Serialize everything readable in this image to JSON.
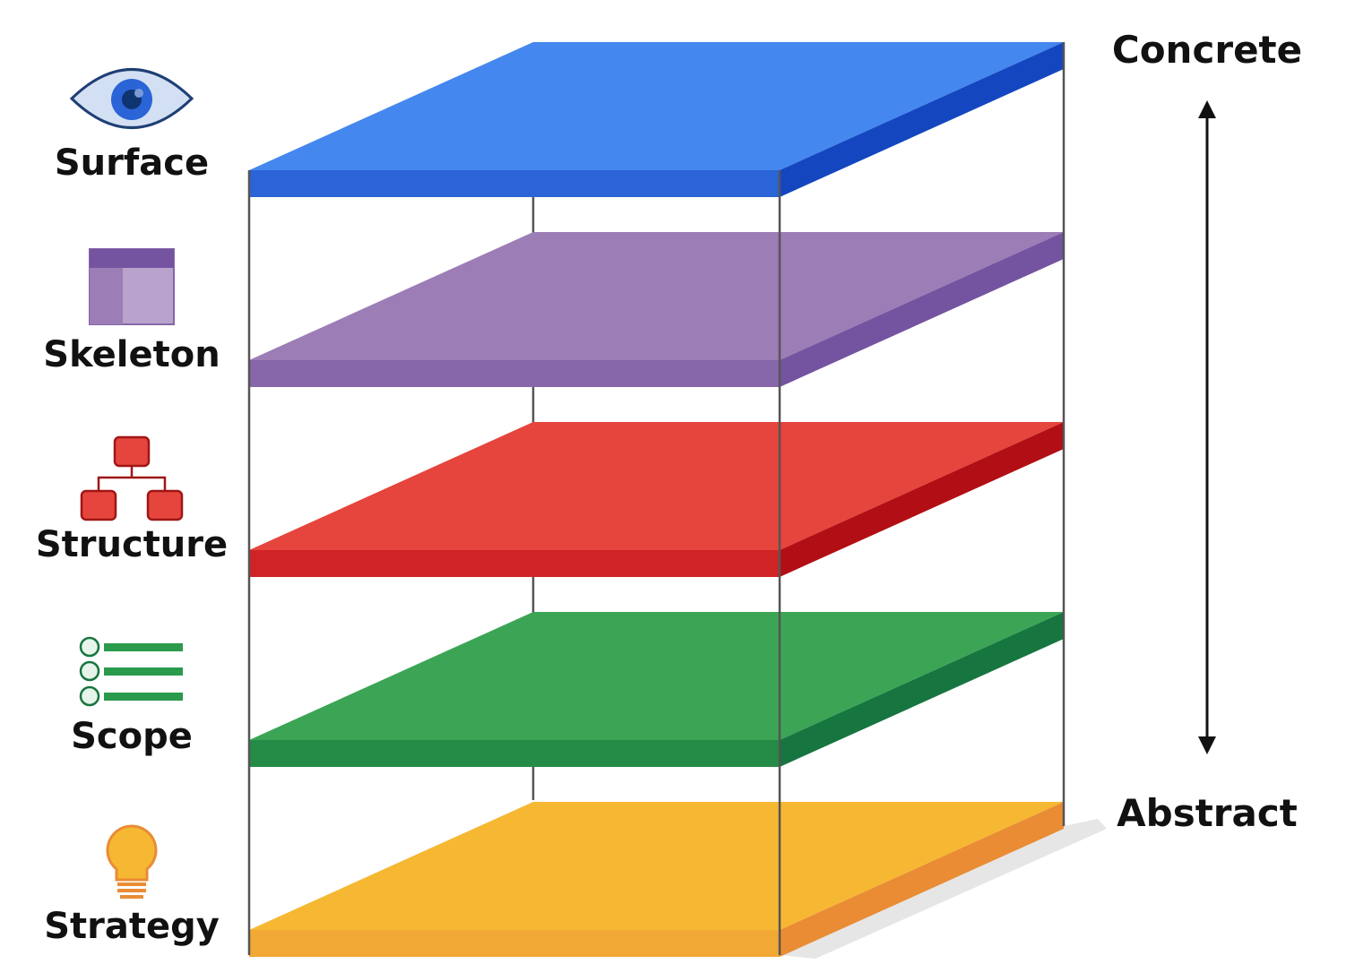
{
  "title_axis": {
    "top": "Concrete",
    "bottom": "Abstract"
  },
  "layers": [
    {
      "label": "Surface",
      "icon": "eye-icon",
      "top": "#4487ee",
      "front": "#2a64d6",
      "side": "#1446c0"
    },
    {
      "label": "Skeleton",
      "icon": "layout-icon",
      "top": "#9c7db5",
      "front": "#8766a9",
      "side": "#7453a0"
    },
    {
      "label": "Structure",
      "icon": "sitemap-icon",
      "top": "#e5453c",
      "front": "#d02326",
      "side": "#b20e15"
    },
    {
      "label": "Scope",
      "icon": "checklist-icon",
      "top": "#3ba555",
      "front": "#258c47",
      "side": "#177540"
    },
    {
      "label": "Strategy",
      "icon": "lightbulb-icon",
      "top": "#f6b833",
      "front": "#f2a834",
      "side": "#e98c34"
    }
  ]
}
